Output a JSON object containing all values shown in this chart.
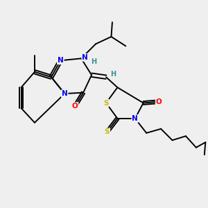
{
  "background_color": "#efefef",
  "atom_colors": {
    "N": "#0000ee",
    "O": "#ff0000",
    "S": "#ccbb00",
    "H": "#3a9090"
  },
  "bond_color": "#000000",
  "bond_width": 1.4,
  "figsize": [
    3.0,
    3.0
  ],
  "dpi": 100
}
